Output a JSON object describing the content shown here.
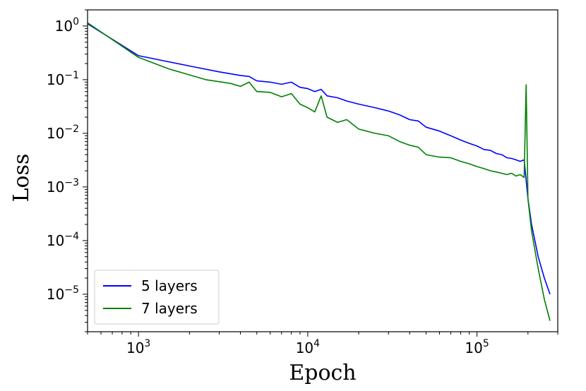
{
  "chart_data": {
    "type": "line",
    "title": "",
    "xlabel": "Epoch",
    "ylabel": "Loss",
    "xscale": "log",
    "yscale": "log",
    "xlim": [
      500,
      300000
    ],
    "ylim": [
      2e-06,
      2.0
    ],
    "grid": false,
    "legend_position": "lower-left",
    "x_ticks": [
      {
        "value": 1000,
        "base": "10",
        "exp": "3"
      },
      {
        "value": 10000,
        "base": "10",
        "exp": "4"
      },
      {
        "value": 100000,
        "base": "10",
        "exp": "5"
      }
    ],
    "y_ticks": [
      {
        "value": 1,
        "base": "10",
        "exp": "0"
      },
      {
        "value": 0.1,
        "base": "10",
        "exp": "−1"
      },
      {
        "value": 0.01,
        "base": "10",
        "exp": "−2"
      },
      {
        "value": 0.001,
        "base": "10",
        "exp": "−3"
      },
      {
        "value": 0.0001,
        "base": "10",
        "exp": "−4"
      },
      {
        "value": 1e-05,
        "base": "10",
        "exp": "−5"
      }
    ],
    "series": [
      {
        "name": "5 layers",
        "color": "#0000ff",
        "points": [
          [
            500,
            1.1
          ],
          [
            1000,
            0.28
          ],
          [
            2000,
            0.18
          ],
          [
            3000,
            0.14
          ],
          [
            4000,
            0.12
          ],
          [
            4500,
            0.115
          ],
          [
            5000,
            0.095
          ],
          [
            6000,
            0.09
          ],
          [
            7000,
            0.082
          ],
          [
            8000,
            0.09
          ],
          [
            9000,
            0.072
          ],
          [
            10000,
            0.068
          ],
          [
            11000,
            0.06
          ],
          [
            12000,
            0.066
          ],
          [
            13000,
            0.05
          ],
          [
            15000,
            0.046
          ],
          [
            17000,
            0.04
          ],
          [
            20000,
            0.035
          ],
          [
            25000,
            0.03
          ],
          [
            30000,
            0.026
          ],
          [
            35000,
            0.022
          ],
          [
            40000,
            0.018
          ],
          [
            45000,
            0.017
          ],
          [
            50000,
            0.013
          ],
          [
            60000,
            0.011
          ],
          [
            70000,
            0.009
          ],
          [
            80000,
            0.0075
          ],
          [
            90000,
            0.0065
          ],
          [
            100000,
            0.0058
          ],
          [
            110000,
            0.005
          ],
          [
            120000,
            0.0048
          ],
          [
            130000,
            0.0042
          ],
          [
            140000,
            0.004
          ],
          [
            150000,
            0.0035
          ],
          [
            160000,
            0.0034
          ],
          [
            170000,
            0.0032
          ],
          [
            180000,
            0.003
          ],
          [
            190000,
            0.0032
          ],
          [
            200000,
            0.0006
          ],
          [
            210000,
            0.0002
          ],
          [
            230000,
            5e-05
          ],
          [
            250000,
            2e-05
          ],
          [
            270000,
            1e-05
          ]
        ]
      },
      {
        "name": "7 layers",
        "color": "#008000",
        "points": [
          [
            500,
            1.15
          ],
          [
            1000,
            0.26
          ],
          [
            1500,
            0.16
          ],
          [
            2500,
            0.1
          ],
          [
            3500,
            0.085
          ],
          [
            4000,
            0.075
          ],
          [
            4500,
            0.09
          ],
          [
            5000,
            0.06
          ],
          [
            6000,
            0.058
          ],
          [
            7000,
            0.048
          ],
          [
            8000,
            0.055
          ],
          [
            9000,
            0.035
          ],
          [
            10000,
            0.03
          ],
          [
            11000,
            0.025
          ],
          [
            12000,
            0.05
          ],
          [
            13000,
            0.02
          ],
          [
            15000,
            0.016
          ],
          [
            17000,
            0.018
          ],
          [
            20000,
            0.012
          ],
          [
            25000,
            0.01
          ],
          [
            30000,
            0.009
          ],
          [
            35000,
            0.007
          ],
          [
            40000,
            0.006
          ],
          [
            45000,
            0.0055
          ],
          [
            50000,
            0.004
          ],
          [
            60000,
            0.0036
          ],
          [
            70000,
            0.0035
          ],
          [
            80000,
            0.003
          ],
          [
            90000,
            0.0027
          ],
          [
            100000,
            0.0024
          ],
          [
            110000,
            0.0022
          ],
          [
            120000,
            0.002
          ],
          [
            130000,
            0.0019
          ],
          [
            140000,
            0.0018
          ],
          [
            150000,
            0.0017
          ],
          [
            160000,
            0.0018
          ],
          [
            170000,
            0.0016
          ],
          [
            180000,
            0.0017
          ],
          [
            190000,
            0.0015
          ],
          [
            195000,
            0.08
          ],
          [
            200000,
            0.0006
          ],
          [
            210000,
            0.00015
          ],
          [
            230000,
            3e-05
          ],
          [
            250000,
            8e-06
          ],
          [
            270000,
            3.2e-06
          ]
        ]
      }
    ]
  }
}
